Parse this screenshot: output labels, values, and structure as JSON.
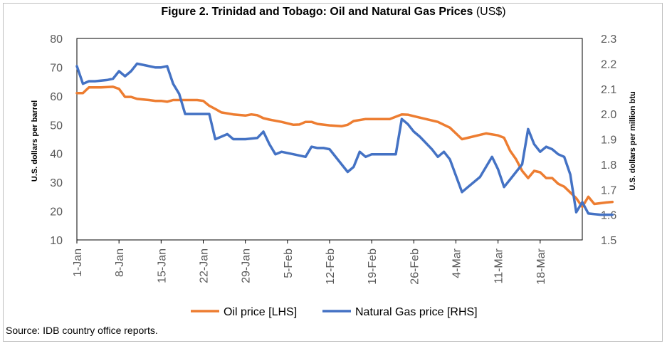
{
  "title_bold": "Figure 2. Trinidad and Tobago: Oil and Natural Gas Prices",
  "title_rest": "(US$)",
  "source": "Source: IDB country office reports.",
  "chart_data": {
    "type": "line",
    "x_tick_labels": [
      "1-Jan",
      "8-Jan",
      "15-Jan",
      "22-Jan",
      "29-Jan",
      "5-Feb",
      "12-Feb",
      "19-Feb",
      "26-Feb",
      "4-Mar",
      "11-Mar",
      "18-Mar"
    ],
    "ylabel_left": "U.S. dollars per barrel",
    "ylabel_right": "U.S. dollars per million btu",
    "ylim_left": [
      10,
      80
    ],
    "yticks_left": [
      10,
      20,
      30,
      40,
      50,
      60,
      70,
      80
    ],
    "ylim_right": [
      1.5,
      2.3
    ],
    "yticks_right": [
      "1.5",
      "1.6",
      "1.7",
      "1.8",
      "1.9",
      "2.0",
      "2.1",
      "2.2",
      "2.3"
    ],
    "x_range_days": [
      0,
      84
    ],
    "legend_position": "bottom",
    "series": [
      {
        "name": "Oil price [LHS]",
        "axis": "left",
        "color": "#ed7d31",
        "points": [
          [
            0,
            61
          ],
          [
            1,
            61
          ],
          [
            2,
            63
          ],
          [
            4,
            63
          ],
          [
            6,
            63.2
          ],
          [
            7,
            62.5
          ],
          [
            8,
            59.7
          ],
          [
            9,
            59.7
          ],
          [
            10,
            59
          ],
          [
            12,
            58.6
          ],
          [
            13,
            58.3
          ],
          [
            14,
            58.3
          ],
          [
            15,
            58
          ],
          [
            16,
            58.6
          ],
          [
            18,
            58.6
          ],
          [
            20,
            58.6
          ],
          [
            21,
            58.3
          ],
          [
            22,
            56.6
          ],
          [
            23,
            55.5
          ],
          [
            24,
            54.3
          ],
          [
            26,
            53.6
          ],
          [
            28,
            53.2
          ],
          [
            29,
            53.6
          ],
          [
            30,
            53.3
          ],
          [
            31,
            52.3
          ],
          [
            32,
            51.8
          ],
          [
            34,
            51
          ],
          [
            36,
            50
          ],
          [
            37,
            50.1
          ],
          [
            38,
            51
          ],
          [
            39,
            51
          ],
          [
            40,
            50.3
          ],
          [
            42,
            49.8
          ],
          [
            44,
            49.5
          ],
          [
            45,
            50
          ],
          [
            46,
            51.3
          ],
          [
            48,
            52
          ],
          [
            50,
            52
          ],
          [
            52,
            52
          ],
          [
            54,
            53.6
          ],
          [
            55,
            53.5
          ],
          [
            56,
            53
          ],
          [
            58,
            52
          ],
          [
            60,
            51
          ],
          [
            61,
            50
          ],
          [
            62,
            49
          ],
          [
            63,
            47
          ],
          [
            64,
            45
          ],
          [
            65,
            45.5
          ],
          [
            67,
            46.5
          ],
          [
            68,
            47
          ],
          [
            70,
            46.3
          ],
          [
            71,
            45.5
          ],
          [
            72,
            41
          ],
          [
            73,
            38
          ],
          [
            74,
            34
          ],
          [
            75,
            31.5
          ],
          [
            76,
            34
          ],
          [
            77,
            33.5
          ],
          [
            78,
            31.5
          ],
          [
            79,
            31.5
          ],
          [
            80,
            29.5
          ],
          [
            81,
            28.5
          ],
          [
            82,
            26.5
          ],
          [
            83,
            24.5
          ],
          [
            84,
            21.5
          ],
          [
            85,
            25
          ],
          [
            86,
            22.5
          ],
          [
            88,
            23
          ],
          [
            89,
            23.2
          ]
        ]
      },
      {
        "name": "Natural Gas price [RHS]",
        "axis": "right",
        "color": "#4472c4",
        "points": [
          [
            0,
            2.19
          ],
          [
            1,
            2.12
          ],
          [
            2,
            2.13
          ],
          [
            3,
            2.13
          ],
          [
            5,
            2.135
          ],
          [
            6,
            2.14
          ],
          [
            7,
            2.17
          ],
          [
            8,
            2.15
          ],
          [
            9,
            2.17
          ],
          [
            10,
            2.2
          ],
          [
            12,
            2.19
          ],
          [
            13,
            2.185
          ],
          [
            14,
            2.185
          ],
          [
            15,
            2.19
          ],
          [
            16,
            2.12
          ],
          [
            17,
            2.08
          ],
          [
            18,
            2.0
          ],
          [
            20,
            2.0
          ],
          [
            21,
            2.0
          ],
          [
            22,
            2.0
          ],
          [
            23,
            1.9
          ],
          [
            24,
            1.91
          ],
          [
            25,
            1.92
          ],
          [
            26,
            1.9
          ],
          [
            28,
            1.9
          ],
          [
            30,
            1.905
          ],
          [
            31,
            1.93
          ],
          [
            32,
            1.88
          ],
          [
            33,
            1.84
          ],
          [
            34,
            1.85
          ],
          [
            36,
            1.84
          ],
          [
            38,
            1.83
          ],
          [
            39,
            1.87
          ],
          [
            40,
            1.865
          ],
          [
            41,
            1.865
          ],
          [
            42,
            1.86
          ],
          [
            44,
            1.8
          ],
          [
            45,
            1.77
          ],
          [
            46,
            1.79
          ],
          [
            47,
            1.85
          ],
          [
            48,
            1.83
          ],
          [
            49,
            1.84
          ],
          [
            51,
            1.84
          ],
          [
            53,
            1.84
          ],
          [
            54,
            1.98
          ],
          [
            55,
            1.96
          ],
          [
            56,
            1.93
          ],
          [
            57,
            1.91
          ],
          [
            59,
            1.86
          ],
          [
            60,
            1.83
          ],
          [
            61,
            1.85
          ],
          [
            62,
            1.82
          ],
          [
            64,
            1.69
          ],
          [
            65,
            1.71
          ],
          [
            67,
            1.75
          ],
          [
            68,
            1.79
          ],
          [
            69,
            1.83
          ],
          [
            70,
            1.78
          ],
          [
            71,
            1.71
          ],
          [
            72,
            1.74
          ],
          [
            73,
            1.77
          ],
          [
            74,
            1.8
          ],
          [
            75,
            1.94
          ],
          [
            76,
            1.88
          ],
          [
            77,
            1.85
          ],
          [
            78,
            1.87
          ],
          [
            79,
            1.86
          ],
          [
            80,
            1.84
          ],
          [
            81,
            1.83
          ],
          [
            82,
            1.76
          ],
          [
            83,
            1.61
          ],
          [
            84,
            1.65
          ],
          [
            85,
            1.605
          ],
          [
            87,
            1.6
          ],
          [
            89,
            1.6
          ]
        ]
      }
    ]
  }
}
